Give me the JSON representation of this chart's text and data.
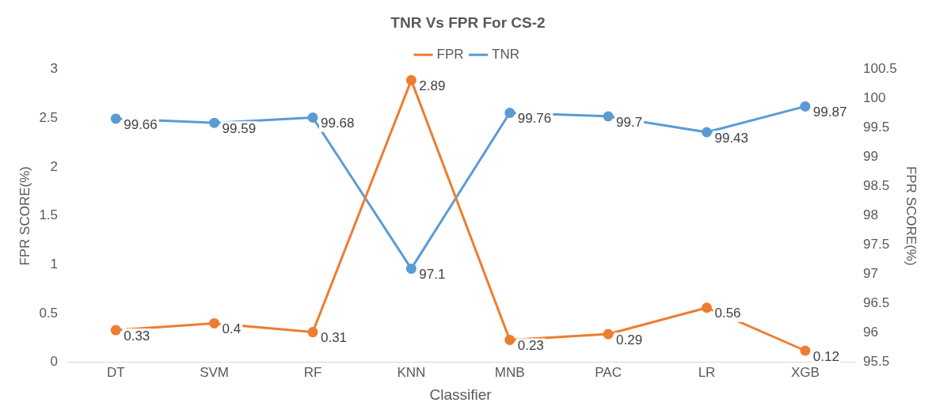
{
  "chart_data": {
    "type": "line",
    "title": "TNR Vs FPR For CS-2",
    "xlabel": "Classifier",
    "ylabel": "FPR SCORE(%)",
    "y2label": "FPR SCORE(%)",
    "categories": [
      "DT",
      "SVM",
      "RF",
      "KNN",
      "MNB",
      "PAC",
      "LR",
      "XGB"
    ],
    "series": [
      {
        "name": "FPR",
        "color": "#ed7d31",
        "values": [
          0.33,
          0.4,
          0.31,
          2.89,
          0.23,
          0.29,
          0.56,
          0.12
        ]
      },
      {
        "name": "TNR",
        "color": "#5b9bd5",
        "axis": "y2",
        "values": [
          99.66,
          99.59,
          99.68,
          97.1,
          99.76,
          99.7,
          99.43,
          99.87
        ]
      }
    ],
    "ylim": [
      0,
      3
    ],
    "yticks": [
      0,
      0.5,
      1,
      1.5,
      2,
      2.5,
      3
    ],
    "y2lim": [
      95.5,
      100.5
    ],
    "y2ticks": [
      95.5,
      96,
      96.5,
      97,
      97.5,
      98,
      98.5,
      99,
      99.5,
      100,
      100.5
    ],
    "grid": false,
    "legend": "top",
    "marker": "circle",
    "line_style": "solid",
    "data_labels": true
  }
}
